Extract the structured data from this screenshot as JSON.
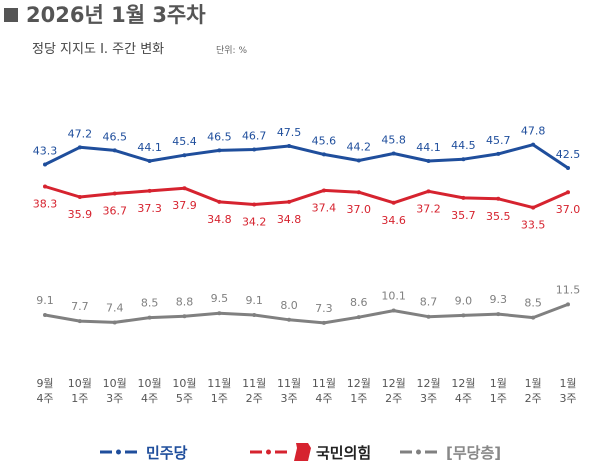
{
  "chart_data": {
    "type": "line",
    "title": "2026년 1월 3주차",
    "subtitle": "정당 지지도 Ⅰ. 주간 변화",
    "unit": "단위: %",
    "categories": [
      "9월\n4주",
      "10월\n1주",
      "10월\n3주",
      "10월\n4주",
      "10월\n5주",
      "11월\n1주",
      "11월\n2주",
      "11월\n3주",
      "11월\n4주",
      "12월\n1주",
      "12월\n2주",
      "12월\n3주",
      "12월\n4주",
      "1월\n1주",
      "1월\n2주",
      "1월\n3주"
    ],
    "ylim": [
      0,
      55
    ],
    "series": [
      {
        "name": "민주당",
        "color": "#1f4e9c",
        "values": [
          43.3,
          47.2,
          46.5,
          44.1,
          45.4,
          46.5,
          46.7,
          47.5,
          45.6,
          44.2,
          45.8,
          44.1,
          44.5,
          45.7,
          47.8,
          42.5
        ],
        "value_labels": [
          "43.3",
          "47.2",
          "46.5",
          "44.1",
          "45.4",
          "46.5",
          "46.7",
          "47.5",
          "45.6",
          "44.2",
          "45.8",
          "44.1",
          "44.5",
          "45.7",
          "47.8",
          "42.5"
        ]
      },
      {
        "name": "국민의힘",
        "color": "#d6232f",
        "values": [
          38.3,
          35.9,
          36.7,
          37.3,
          37.9,
          34.8,
          34.2,
          34.8,
          37.4,
          37.0,
          34.6,
          37.2,
          35.7,
          35.5,
          33.5,
          37.0
        ],
        "value_labels": [
          "38.3",
          "35.9",
          "36.7",
          "37.3",
          "37.9",
          "34.8",
          "34.2",
          "34.8",
          "37.4",
          "37.0",
          "34.6",
          "37.2",
          "35.7",
          "35.5",
          "33.5",
          "37.0"
        ]
      },
      {
        "name": "[무당층]",
        "color": "#808080",
        "values": [
          9.1,
          7.7,
          7.4,
          8.5,
          8.8,
          9.5,
          9.1,
          8.0,
          7.3,
          8.6,
          10.1,
          8.7,
          9.0,
          9.3,
          8.5,
          11.5
        ],
        "value_labels": [
          "9.1",
          "7.7",
          "7.4",
          "8.5",
          "8.8",
          "9.5",
          "9.1",
          "8.0",
          "7.3",
          "8.6",
          "10.1",
          "8.7",
          "9.0",
          "9.3",
          "8.5",
          "11.5"
        ]
      }
    ]
  }
}
